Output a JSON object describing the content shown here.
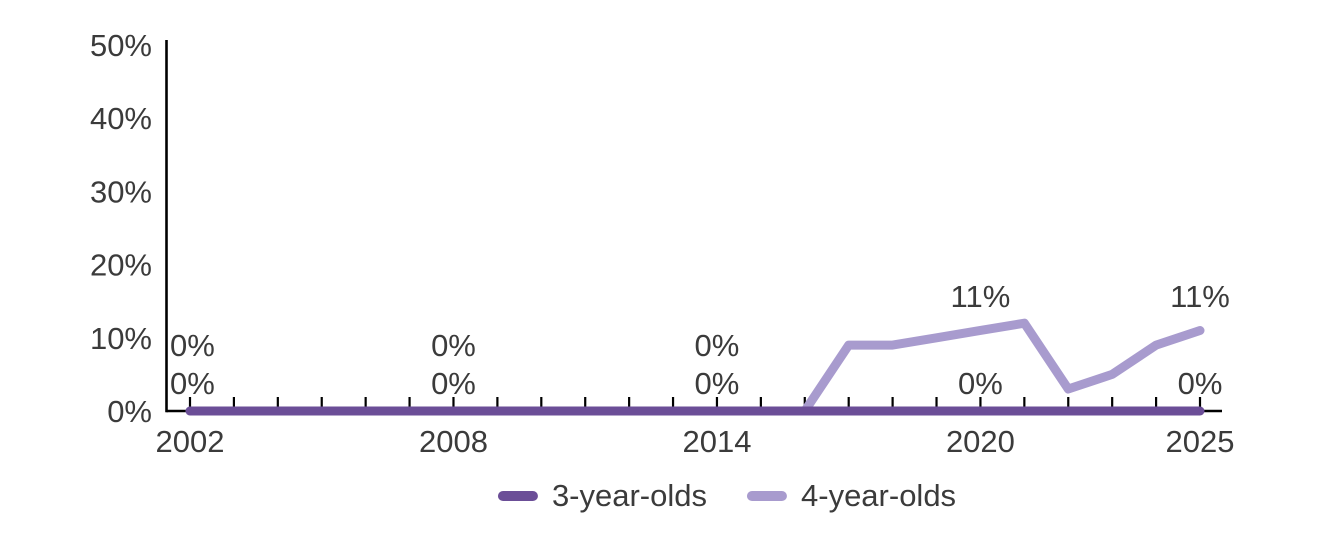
{
  "chart_data": {
    "type": "line",
    "title": "",
    "x": [
      2002,
      2003,
      2004,
      2005,
      2006,
      2007,
      2008,
      2009,
      2010,
      2011,
      2012,
      2013,
      2014,
      2015,
      2016,
      2017,
      2018,
      2019,
      2020,
      2021,
      2022,
      2023,
      2024,
      2025
    ],
    "series": [
      {
        "name": "3-year-olds",
        "color": "#6B4E97",
        "values": [
          0,
          0,
          0,
          0,
          0,
          0,
          0,
          0,
          0,
          0,
          0,
          0,
          0,
          0,
          0,
          0,
          0,
          0,
          0,
          0,
          0,
          0,
          0,
          0
        ]
      },
      {
        "name": "4-year-olds",
        "color": "#A89BCE",
        "values": [
          0,
          0,
          0,
          0,
          0,
          0,
          0,
          0,
          0,
          0,
          0,
          0,
          0,
          0,
          0,
          9,
          9,
          10,
          11,
          12,
          3,
          5,
          9,
          11
        ]
      }
    ],
    "ylim": [
      0,
      50
    ],
    "y_ticks": [
      {
        "label": "0%",
        "value": 0
      },
      {
        "label": "10%",
        "value": 10
      },
      {
        "label": "20%",
        "value": 20
      },
      {
        "label": "30%",
        "value": 30
      },
      {
        "label": "40%",
        "value": 40
      },
      {
        "label": "50%",
        "value": 50
      }
    ],
    "x_tick_labels": [
      {
        "label": "2002",
        "year": 2002
      },
      {
        "label": "2008",
        "year": 2008
      },
      {
        "label": "2014",
        "year": 2014
      },
      {
        "label": "2020",
        "year": 2020
      },
      {
        "label": "2025",
        "year": 2025
      }
    ],
    "data_labels": [
      {
        "series": "4-year-olds",
        "year": 2002,
        "text": "0%",
        "row": "second",
        "align": "left"
      },
      {
        "series": "3-year-olds",
        "year": 2002,
        "text": "0%",
        "row": "first",
        "align": "left"
      },
      {
        "series": "4-year-olds",
        "year": 2008,
        "text": "0%",
        "row": "second"
      },
      {
        "series": "3-year-olds",
        "year": 2008,
        "text": "0%",
        "row": "first"
      },
      {
        "series": "4-year-olds",
        "year": 2014,
        "text": "0%",
        "row": "second"
      },
      {
        "series": "3-year-olds",
        "year": 2014,
        "text": "0%",
        "row": "first"
      },
      {
        "series": "4-year-olds",
        "year": 2020,
        "text": "11%",
        "row": "above"
      },
      {
        "series": "3-year-olds",
        "year": 2020,
        "text": "0%",
        "row": "first"
      },
      {
        "series": "4-year-olds",
        "year": 2025,
        "text": "11%",
        "row": "above"
      },
      {
        "series": "3-year-olds",
        "year": 2025,
        "text": "0%",
        "row": "first"
      }
    ],
    "legend": {
      "position": "bottom"
    },
    "grid": false,
    "axis_color": "#000000",
    "label_color": "#3B3B3B"
  }
}
